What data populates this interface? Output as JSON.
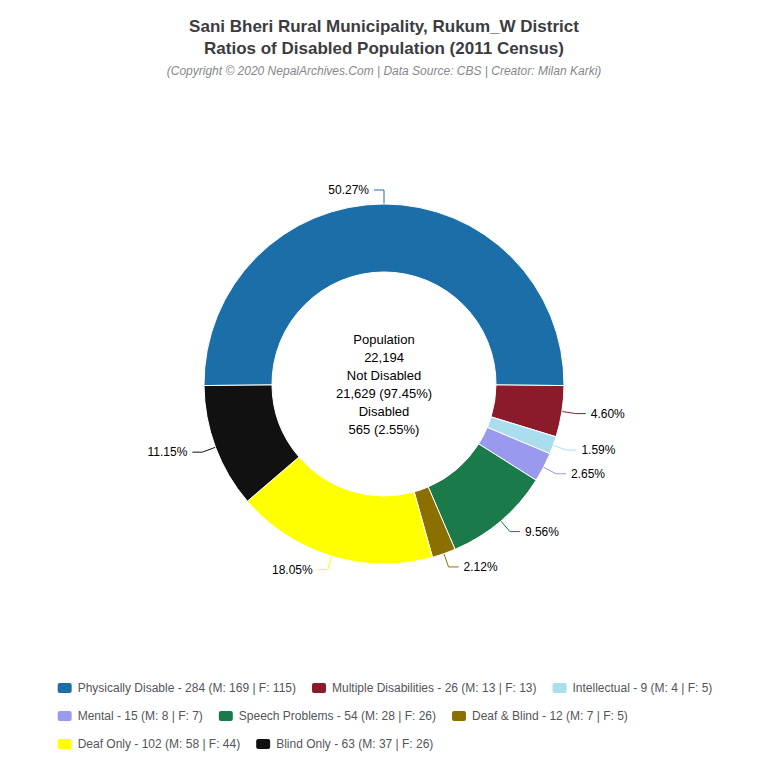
{
  "chart_data": {
    "type": "pie",
    "title": "Sani Bheri Rural Municipality, Rukum_W District\nRatios of Disabled Population (2011 Census)",
    "subtitle": "(Copyright © 2020 NepalArchives.Com | Data Source: CBS | Creator: Milan Karki)",
    "categories": [
      "Physically Disable - 284 (M: 169 | F: 115)",
      "Multiple Disabilities - 26 (M: 13 | F: 13)",
      "Intellectual - 9 (M: 4 | F: 5)",
      "Mental - 15 (M: 8 | F: 7)",
      "Speech Problems - 54 (M: 28 | F: 26)",
      "Deaf & Blind - 12 (M: 7 | F: 5)",
      "Deaf Only - 102 (M: 58 | F: 44)",
      "Blind Only - 63 (M: 37 | F: 26)"
    ],
    "values": [
      50.27,
      4.6,
      1.59,
      2.65,
      9.56,
      2.12,
      18.05,
      11.15
    ],
    "value_labels": [
      "50.27%",
      "4.60%",
      "1.59%",
      "2.65%",
      "9.56%",
      "2.12%",
      "18.05%",
      "11.15%"
    ],
    "colors": [
      "#1b6ea8",
      "#8b1a2a",
      "#aaddee",
      "#9999ee",
      "#1a7a4a",
      "#8b7000",
      "#ffff00",
      "#111111"
    ],
    "data_labels": true,
    "legend": "bottom",
    "annotations": [
      "Population",
      "22,194",
      "Not Disabled",
      "21,629 (97.45%)",
      "Disabled",
      "565 (2.55%)"
    ]
  }
}
